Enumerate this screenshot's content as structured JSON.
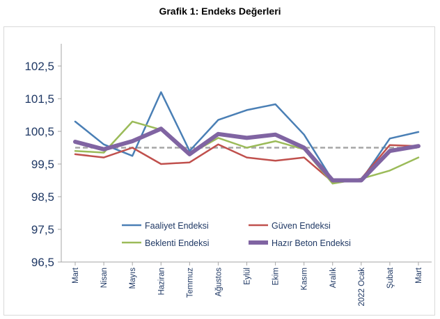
{
  "title": "Grafik 1: Endeks Değerleri",
  "chart_data": {
    "type": "line",
    "title": "Grafik 1: Endeks Değerleri",
    "xlabel": "",
    "ylabel": "",
    "ylim": [
      96.5,
      103.5
    ],
    "yticks": [
      96.5,
      97.5,
      98.5,
      99.5,
      100.5,
      101.5,
      102.5
    ],
    "ytick_labels": [
      "96,5",
      "97,5",
      "98,5",
      "99,5",
      "100,5",
      "101,5",
      "102,5"
    ],
    "categories": [
      "Mart",
      "Nisan",
      "Mayıs",
      "Haziran",
      "Temmuz",
      "Ağustos",
      "Eylül",
      "Ekim",
      "Kasım",
      "Aralık",
      "2022 Ocak",
      "Şubat",
      "Mart"
    ],
    "reference_line": 100,
    "grid": false,
    "legend_position": "bottom-inside",
    "series": [
      {
        "name": "Faaliyet Endeksi",
        "color": "#4a7fb5",
        "width": 2.5,
        "values": [
          100.8,
          100.1,
          99.75,
          101.7,
          99.9,
          100.85,
          101.15,
          101.33,
          100.4,
          99.0,
          99.0,
          100.28,
          100.48
        ]
      },
      {
        "name": "Güven Endeksi",
        "color": "#c0504d",
        "width": 2.5,
        "values": [
          99.8,
          99.7,
          100.0,
          99.5,
          99.55,
          100.1,
          99.7,
          99.6,
          99.7,
          98.95,
          99.05,
          100.08,
          100.05
        ]
      },
      {
        "name": "Beklenti Endeksi",
        "color": "#9bbb59",
        "width": 2.5,
        "values": [
          99.9,
          99.85,
          100.8,
          100.55,
          99.8,
          100.3,
          100.0,
          100.2,
          99.95,
          98.9,
          99.05,
          99.3,
          99.7
        ]
      },
      {
        "name": "Hazır Beton Endeksi",
        "color": "#8064a2",
        "width": 6,
        "values": [
          100.18,
          99.95,
          100.2,
          100.58,
          99.8,
          100.42,
          100.3,
          100.4,
          100.0,
          99.0,
          99.0,
          99.9,
          100.05
        ]
      }
    ]
  }
}
